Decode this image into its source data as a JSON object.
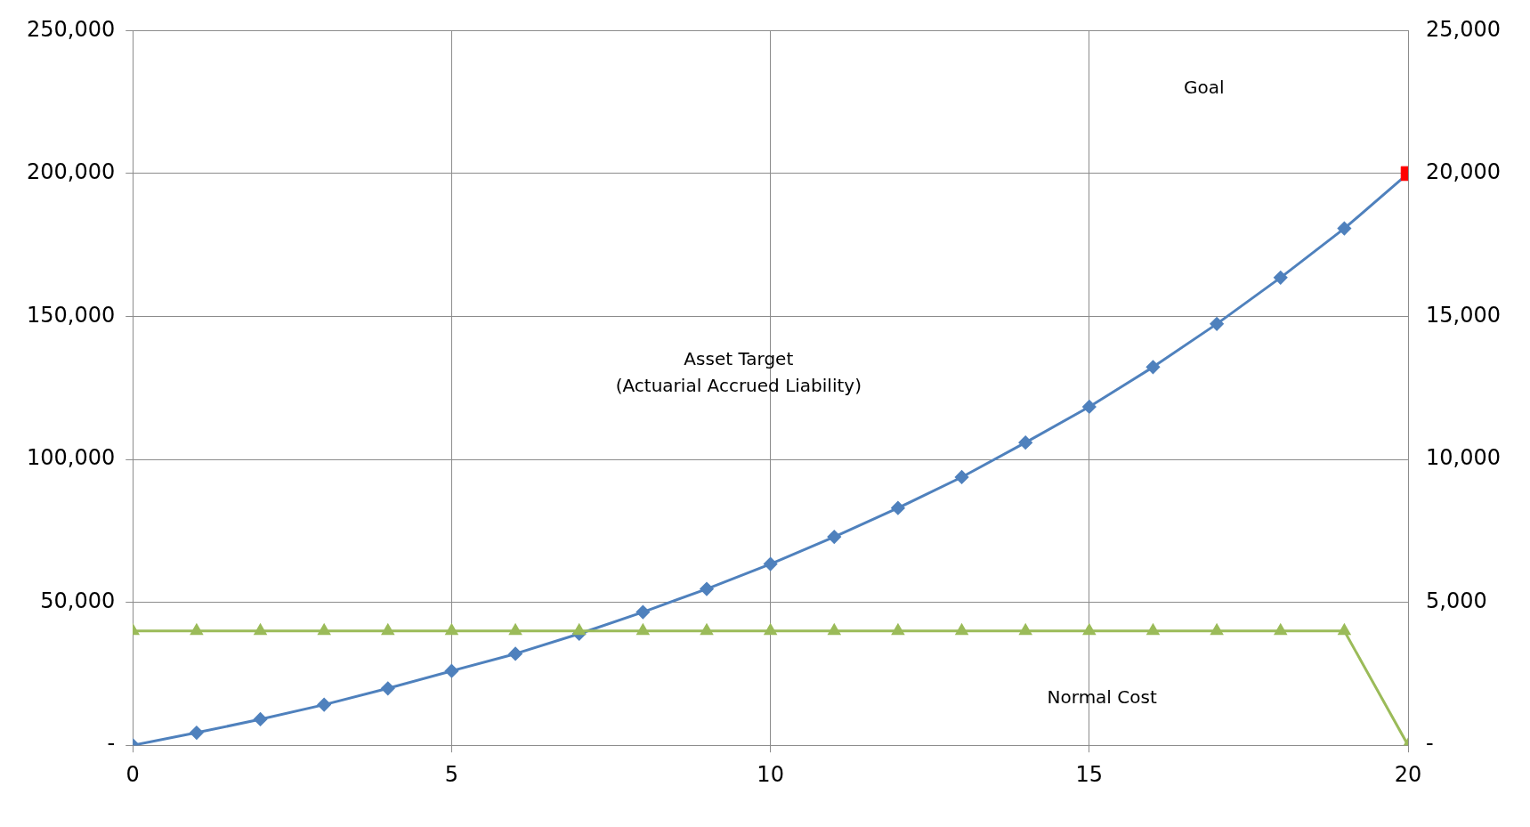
{
  "chart_data": {
    "type": "line",
    "x": [
      0,
      1,
      2,
      3,
      4,
      5,
      6,
      7,
      8,
      9,
      10,
      11,
      12,
      13,
      14,
      15,
      16,
      17,
      18,
      19,
      20
    ],
    "series": [
      {
        "color": "#4f81bd",
        "marker": "diamond",
        "values": [
          0,
          4400,
          9100,
          14200,
          19900,
          26000,
          32000,
          39000,
          46600,
          54700,
          63400,
          72900,
          83000,
          93800,
          105900,
          118400,
          132300,
          147400,
          163600,
          180800,
          200000
        ]
      },
      {
        "color": "#9bbb59",
        "marker": "triangle",
        "axis": "y2",
        "values": [
          4000,
          4000,
          4000,
          4000,
          4000,
          4000,
          4000,
          4000,
          4000,
          4000,
          4000,
          4000,
          4000,
          4000,
          4000,
          4000,
          4000,
          4000,
          4000,
          4000,
          0
        ]
      },
      {
        "type": "scatter",
        "color": "#ff0000",
        "marker": "square",
        "x": [
          20
        ],
        "values": [
          200000
        ]
      }
    ],
    "xlim": [
      0,
      20
    ],
    "xticks": [
      0,
      5,
      10,
      15,
      20
    ],
    "ylim": [
      0,
      250000
    ],
    "yticks": [
      {
        "value": 0,
        "label": "-"
      },
      {
        "value": 50000,
        "label": "50,000"
      },
      {
        "value": 100000,
        "label": "100,000"
      },
      {
        "value": 150000,
        "label": "150,000"
      },
      {
        "value": 200000,
        "label": "200,000"
      },
      {
        "value": 250000,
        "label": "250,000"
      }
    ],
    "y2lim": [
      0,
      25000
    ],
    "y2ticks": [
      {
        "value": 0,
        "label": "-"
      },
      {
        "value": 5000,
        "label": "5,000"
      },
      {
        "value": 10000,
        "label": "10,000"
      },
      {
        "value": 15000,
        "label": "15,000"
      },
      {
        "value": 20000,
        "label": "20,000"
      },
      {
        "value": 25000,
        "label": "25,000"
      }
    ],
    "grid": true,
    "legend": false,
    "annotations": [
      "Goal",
      "Asset Target\n(Actuarial Accrued Liability)",
      "Normal Cost"
    ]
  }
}
